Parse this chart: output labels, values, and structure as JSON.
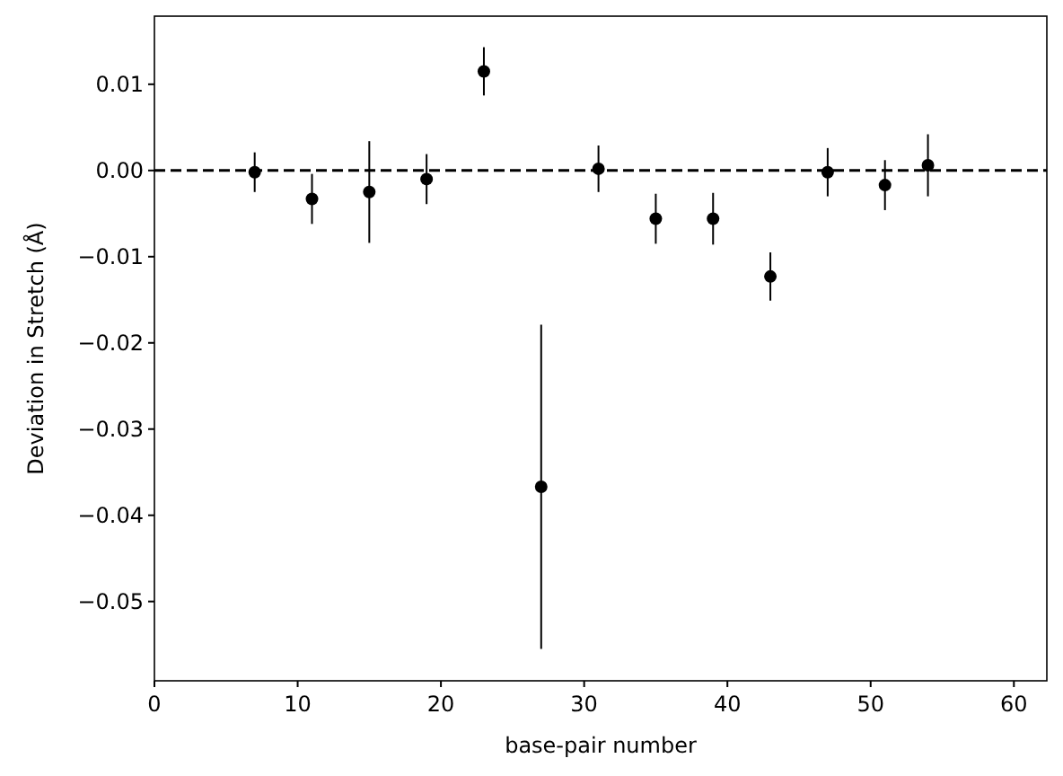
{
  "chart_data": {
    "type": "scatter",
    "xlabel": "base-pair number",
    "ylabel": "Deviation in Stretch (Å)",
    "x": [
      7,
      11,
      15,
      19,
      23,
      27,
      31,
      35,
      39,
      43,
      47,
      51,
      54
    ],
    "series": [
      {
        "color": "#000000",
        "values": [
          -0.0002,
          -0.0033,
          -0.0025,
          -0.001,
          0.0115,
          -0.0367,
          0.0002,
          -0.0056,
          -0.0056,
          -0.0123,
          -0.0002,
          -0.0017,
          0.0006
        ],
        "errors": [
          0.0023,
          0.0029,
          0.0059,
          0.0029,
          0.0028,
          0.0188,
          0.0027,
          0.0029,
          0.003,
          0.0028,
          0.0028,
          0.0029,
          0.0036
        ]
      }
    ],
    "marker": "circle",
    "xlim": [
      0,
      62.3
    ],
    "xticks": [
      0,
      10,
      20,
      30,
      40,
      50,
      60
    ],
    "ylim": [
      -0.0592,
      0.0179
    ],
    "yticks": [
      0.01,
      {
        "value": 0,
        "label": "0.00"
      },
      {
        "value": -0.01,
        "label": "−0.01"
      },
      {
        "value": -0.02,
        "label": "−0.02"
      },
      {
        "value": -0.03,
        "label": "−0.03"
      },
      {
        "value": -0.04,
        "label": "−0.04"
      },
      {
        "value": -0.05,
        "label": "−0.05"
      }
    ],
    "ref_lines": [
      {
        "axis": "y",
        "value": 0,
        "color": "#000000",
        "line_style": "dashed"
      }
    ]
  }
}
